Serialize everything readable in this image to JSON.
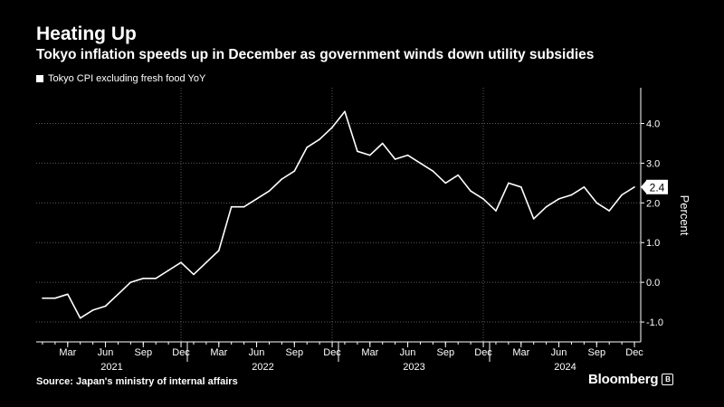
{
  "header": {
    "title": "Heating Up",
    "subtitle": "Tokyo inflation speeds up in December as government winds down utility subsidies"
  },
  "footer": {
    "source": "Source: Japan's ministry of internal affairs",
    "brand": "Bloomberg",
    "brand_icon": "bloomberg-mark-icon"
  },
  "colors": {
    "background": "#000000",
    "line": "#ffffff",
    "grid": "#5a5a5a"
  },
  "chart_data": {
    "type": "line",
    "title": "Heating Up",
    "subtitle": "Tokyo inflation speeds up in December as government winds down utility subsidies",
    "ylabel": "Percent",
    "xlabel": "",
    "ylim": [
      -1.5,
      4.9
    ],
    "yticks": [
      {
        "value": 4.0,
        "label": "4.0"
      },
      {
        "value": 3.0,
        "label": "3.0"
      },
      {
        "value": 2.0,
        "label": "2.0"
      },
      {
        "value": 1.0,
        "label": "1.0"
      },
      {
        "value": 0.0,
        "label": "0.0"
      },
      {
        "value": -1.0,
        "label": "-1.0"
      }
    ],
    "grid": true,
    "legend_position": "top-left",
    "x_tick_labels": [
      "Mar",
      "Jun",
      "Sep",
      "Dec",
      "Mar",
      "Jun",
      "Sep",
      "Dec",
      "Mar",
      "Jun",
      "Sep",
      "Dec",
      "Mar",
      "Jun",
      "Sep",
      "Dec"
    ],
    "year_labels": [
      {
        "year": "2021",
        "month_index": 6
      },
      {
        "year": "2022",
        "month_index": 18
      },
      {
        "year": "2023",
        "month_index": 30
      },
      {
        "year": "2024",
        "month_index": 42
      }
    ],
    "last_value_label": "2.4",
    "series": [
      {
        "name": "Tokyo CPI excluding fresh food YoY",
        "x": [
          "2021-01",
          "2021-02",
          "2021-03",
          "2021-04",
          "2021-05",
          "2021-06",
          "2021-07",
          "2021-08",
          "2021-09",
          "2021-10",
          "2021-11",
          "2021-12",
          "2022-01",
          "2022-02",
          "2022-03",
          "2022-04",
          "2022-05",
          "2022-06",
          "2022-07",
          "2022-08",
          "2022-09",
          "2022-10",
          "2022-11",
          "2022-12",
          "2023-01",
          "2023-02",
          "2023-03",
          "2023-04",
          "2023-05",
          "2023-06",
          "2023-07",
          "2023-08",
          "2023-09",
          "2023-10",
          "2023-11",
          "2023-12",
          "2024-01",
          "2024-02",
          "2024-03",
          "2024-04",
          "2024-05",
          "2024-06",
          "2024-07",
          "2024-08",
          "2024-09",
          "2024-10",
          "2024-11",
          "2024-12"
        ],
        "values": [
          -0.4,
          -0.4,
          -0.3,
          -0.9,
          -0.7,
          -0.6,
          -0.3,
          0.0,
          0.1,
          0.1,
          0.3,
          0.5,
          0.2,
          0.5,
          0.8,
          1.9,
          1.9,
          2.1,
          2.3,
          2.6,
          2.8,
          3.4,
          3.6,
          3.9,
          4.3,
          3.3,
          3.2,
          3.5,
          3.1,
          3.2,
          3.0,
          2.8,
          2.5,
          2.7,
          2.3,
          2.1,
          1.8,
          2.5,
          2.4,
          1.6,
          1.9,
          2.1,
          2.2,
          2.4,
          2.0,
          1.8,
          2.2,
          2.4
        ]
      }
    ]
  }
}
